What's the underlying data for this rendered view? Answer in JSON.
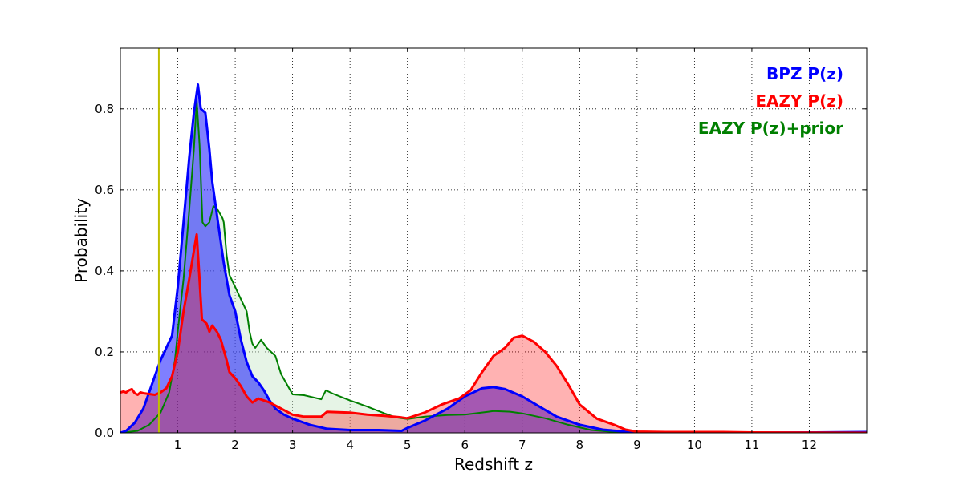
{
  "chart_data": {
    "type": "area",
    "title": "",
    "xlabel": "Redshift z",
    "ylabel": "Probability",
    "xlim": [
      0,
      13
    ],
    "ylim": [
      0,
      0.95
    ],
    "xticks": [
      1,
      2,
      3,
      4,
      5,
      6,
      7,
      8,
      9,
      10,
      11,
      12
    ],
    "yticks": [
      0.0,
      0.2,
      0.4,
      0.6,
      0.8
    ],
    "ytick_labels": [
      "0.0",
      "0.2",
      "0.4",
      "0.6",
      "0.8"
    ],
    "grid": true,
    "legend_position": "top-right",
    "reference_line": {
      "x": 0.67,
      "color": "#bfbf00"
    },
    "series": [
      {
        "name": "EAZY P(z)+prior",
        "color": "#007f00",
        "fill": "#c8e6c8",
        "fill_opacity": 0.45,
        "points": [
          [
            0.0,
            0.0
          ],
          [
            0.3,
            0.005
          ],
          [
            0.5,
            0.02
          ],
          [
            0.7,
            0.05
          ],
          [
            0.85,
            0.1
          ],
          [
            0.95,
            0.18
          ],
          [
            1.0,
            0.25
          ],
          [
            1.1,
            0.38
          ],
          [
            1.2,
            0.55
          ],
          [
            1.28,
            0.7
          ],
          [
            1.33,
            0.82
          ],
          [
            1.38,
            0.71
          ],
          [
            1.43,
            0.52
          ],
          [
            1.48,
            0.51
          ],
          [
            1.55,
            0.52
          ],
          [
            1.62,
            0.56
          ],
          [
            1.7,
            0.55
          ],
          [
            1.78,
            0.53
          ],
          [
            1.8,
            0.52
          ],
          [
            1.85,
            0.44
          ],
          [
            1.9,
            0.39
          ],
          [
            2.0,
            0.36
          ],
          [
            2.1,
            0.33
          ],
          [
            2.2,
            0.3
          ],
          [
            2.25,
            0.25
          ],
          [
            2.3,
            0.22
          ],
          [
            2.35,
            0.21
          ],
          [
            2.45,
            0.23
          ],
          [
            2.55,
            0.21
          ],
          [
            2.7,
            0.19
          ],
          [
            2.8,
            0.145
          ],
          [
            2.9,
            0.12
          ],
          [
            3.0,
            0.095
          ],
          [
            3.2,
            0.093
          ],
          [
            3.5,
            0.083
          ],
          [
            3.58,
            0.105
          ],
          [
            3.7,
            0.097
          ],
          [
            4.0,
            0.08
          ],
          [
            4.3,
            0.065
          ],
          [
            4.6,
            0.048
          ],
          [
            4.8,
            0.038
          ],
          [
            5.0,
            0.034
          ],
          [
            5.3,
            0.04
          ],
          [
            5.7,
            0.044
          ],
          [
            6.0,
            0.045
          ],
          [
            6.4,
            0.052
          ],
          [
            6.5,
            0.054
          ],
          [
            6.8,
            0.052
          ],
          [
            7.0,
            0.048
          ],
          [
            7.4,
            0.036
          ],
          [
            7.8,
            0.02
          ],
          [
            8.2,
            0.007
          ],
          [
            8.6,
            0.002
          ],
          [
            9.0,
            0.001
          ],
          [
            10.0,
            0.0
          ],
          [
            13.0,
            0.0
          ]
        ]
      },
      {
        "name": "BPZ P(z)",
        "color": "#0000ff",
        "fill": "#0000ff",
        "fill_opacity": 0.5,
        "points": [
          [
            0.0,
            0.0
          ],
          [
            0.1,
            0.005
          ],
          [
            0.25,
            0.025
          ],
          [
            0.4,
            0.06
          ],
          [
            0.5,
            0.1
          ],
          [
            0.6,
            0.14
          ],
          [
            0.7,
            0.18
          ],
          [
            0.8,
            0.21
          ],
          [
            0.9,
            0.24
          ],
          [
            1.0,
            0.36
          ],
          [
            1.1,
            0.52
          ],
          [
            1.2,
            0.68
          ],
          [
            1.28,
            0.79
          ],
          [
            1.35,
            0.86
          ],
          [
            1.4,
            0.8
          ],
          [
            1.48,
            0.79
          ],
          [
            1.55,
            0.7
          ],
          [
            1.6,
            0.62
          ],
          [
            1.7,
            0.52
          ],
          [
            1.8,
            0.42
          ],
          [
            1.9,
            0.34
          ],
          [
            2.0,
            0.3
          ],
          [
            2.1,
            0.23
          ],
          [
            2.2,
            0.175
          ],
          [
            2.3,
            0.14
          ],
          [
            2.4,
            0.125
          ],
          [
            2.5,
            0.105
          ],
          [
            2.6,
            0.08
          ],
          [
            2.7,
            0.06
          ],
          [
            2.85,
            0.045
          ],
          [
            3.0,
            0.035
          ],
          [
            3.3,
            0.02
          ],
          [
            3.6,
            0.01
          ],
          [
            4.0,
            0.007
          ],
          [
            4.5,
            0.007
          ],
          [
            4.9,
            0.005
          ],
          [
            5.0,
            0.012
          ],
          [
            5.3,
            0.03
          ],
          [
            5.7,
            0.06
          ],
          [
            6.0,
            0.09
          ],
          [
            6.3,
            0.11
          ],
          [
            6.5,
            0.113
          ],
          [
            6.7,
            0.108
          ],
          [
            7.0,
            0.09
          ],
          [
            7.3,
            0.065
          ],
          [
            7.6,
            0.04
          ],
          [
            8.0,
            0.02
          ],
          [
            8.4,
            0.008
          ],
          [
            8.8,
            0.003
          ],
          [
            9.2,
            0.001
          ],
          [
            10.0,
            0.0
          ],
          [
            12.0,
            0.001
          ],
          [
            13.0,
            0.002
          ]
        ]
      },
      {
        "name": "EAZY P(z)",
        "color": "#ff0000",
        "fill": "#ff0000",
        "fill_opacity": 0.3,
        "points": [
          [
            0.0,
            0.1
          ],
          [
            0.05,
            0.102
          ],
          [
            0.1,
            0.1
          ],
          [
            0.15,
            0.105
          ],
          [
            0.2,
            0.108
          ],
          [
            0.25,
            0.098
          ],
          [
            0.3,
            0.094
          ],
          [
            0.35,
            0.1
          ],
          [
            0.4,
            0.098
          ],
          [
            0.5,
            0.096
          ],
          [
            0.6,
            0.094
          ],
          [
            0.7,
            0.1
          ],
          [
            0.8,
            0.11
          ],
          [
            0.9,
            0.14
          ],
          [
            1.0,
            0.2
          ],
          [
            1.1,
            0.3
          ],
          [
            1.2,
            0.38
          ],
          [
            1.28,
            0.45
          ],
          [
            1.33,
            0.49
          ],
          [
            1.37,
            0.4
          ],
          [
            1.42,
            0.28
          ],
          [
            1.5,
            0.27
          ],
          [
            1.55,
            0.25
          ],
          [
            1.6,
            0.265
          ],
          [
            1.68,
            0.25
          ],
          [
            1.75,
            0.23
          ],
          [
            1.85,
            0.18
          ],
          [
            1.9,
            0.15
          ],
          [
            2.0,
            0.135
          ],
          [
            2.1,
            0.115
          ],
          [
            2.2,
            0.09
          ],
          [
            2.3,
            0.075
          ],
          [
            2.4,
            0.085
          ],
          [
            2.5,
            0.08
          ],
          [
            2.6,
            0.075
          ],
          [
            2.8,
            0.06
          ],
          [
            3.0,
            0.045
          ],
          [
            3.2,
            0.04
          ],
          [
            3.5,
            0.04
          ],
          [
            3.6,
            0.052
          ],
          [
            4.0,
            0.05
          ],
          [
            4.3,
            0.045
          ],
          [
            4.6,
            0.042
          ],
          [
            4.9,
            0.038
          ],
          [
            5.0,
            0.036
          ],
          [
            5.3,
            0.05
          ],
          [
            5.6,
            0.07
          ],
          [
            5.9,
            0.085
          ],
          [
            6.1,
            0.105
          ],
          [
            6.3,
            0.15
          ],
          [
            6.5,
            0.19
          ],
          [
            6.7,
            0.21
          ],
          [
            6.85,
            0.235
          ],
          [
            7.0,
            0.24
          ],
          [
            7.2,
            0.225
          ],
          [
            7.4,
            0.2
          ],
          [
            7.6,
            0.165
          ],
          [
            7.8,
            0.12
          ],
          [
            8.0,
            0.07
          ],
          [
            8.3,
            0.035
          ],
          [
            8.6,
            0.02
          ],
          [
            8.8,
            0.008
          ],
          [
            9.0,
            0.003
          ],
          [
            9.5,
            0.002
          ],
          [
            10.5,
            0.002
          ],
          [
            11.0,
            0.001
          ],
          [
            13.0,
            0.0
          ]
        ]
      }
    ]
  }
}
